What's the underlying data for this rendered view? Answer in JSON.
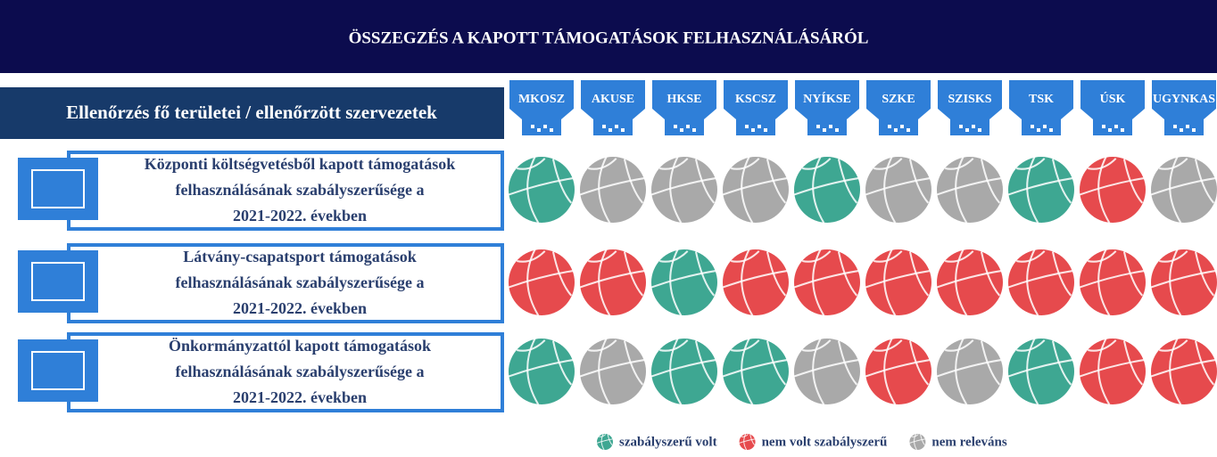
{
  "header": {
    "title": "ÖSSZEGZÉS A KAPOTT TÁMOGATÁSOK FELHASZNÁLÁSÁRÓL"
  },
  "table": {
    "row_header": "Ellenőrzés fő területei / ellenőrzött szervezetek",
    "organizations": [
      "MKOSZ",
      "AKUSE",
      "HKSE",
      "KSCSZ",
      "NYÍKSE",
      "SZKE",
      "SZISKS",
      "TSK",
      "ÚSK",
      "UGYNKAS"
    ],
    "rows": [
      {
        "lines": [
          "Központi költségvetésből kapott támogatások",
          "felhasználásának szabályszerűsége a",
          "2021-2022. években"
        ],
        "status": [
          "szabályszerű volt",
          "nem releváns",
          "nem releváns",
          "nem releváns",
          "szabályszerű volt",
          "nem releváns",
          "nem releváns",
          "szabályszerű volt",
          "nem volt szabályszerű",
          "nem releváns"
        ]
      },
      {
        "lines": [
          "Látvány-csapatsport támogatások",
          "felhasználásának szabályszerűsége a",
          "2021-2022. években"
        ],
        "status": [
          "nem volt szabályszerű",
          "nem volt szabályszerű",
          "szabályszerű volt",
          "nem volt szabályszerű",
          "nem volt szabályszerű",
          "nem volt szabályszerű",
          "nem volt szabályszerű",
          "nem volt szabályszerű",
          "nem volt szabályszerű",
          "nem volt szabályszerű"
        ]
      },
      {
        "lines": [
          "Önkormányzattól kapott támogatások",
          "felhasználásának szabályszerűsége a",
          "2021-2022. években"
        ],
        "status": [
          "szabályszerű volt",
          "nem releváns",
          "szabályszerű volt",
          "szabályszerű volt",
          "nem releváns",
          "nem volt szabályszerű",
          "nem releváns",
          "szabályszerű volt",
          "nem volt szabályszerű",
          "nem volt szabályszerű"
        ]
      }
    ]
  },
  "legend": [
    {
      "label": "szabályszerű volt",
      "color": "#3ea792"
    },
    {
      "label": "nem volt szabályszerű",
      "color": "#e64a4d"
    },
    {
      "label": "nem releváns",
      "color": "#a9a9a9"
    }
  ]
}
